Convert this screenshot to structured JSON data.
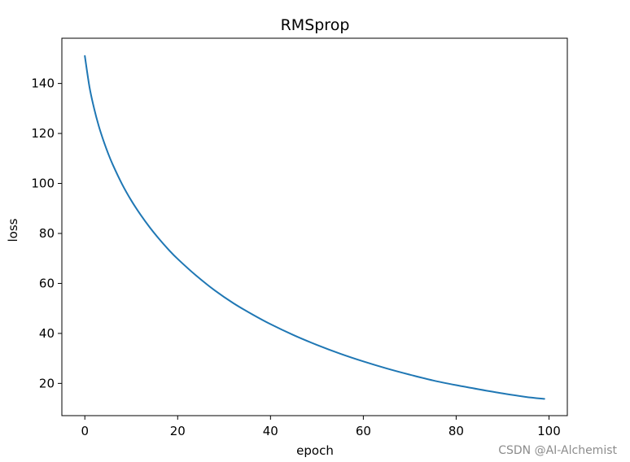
{
  "chart_data": {
    "type": "line",
    "title": "RMSprop",
    "xlabel": "epoch",
    "ylabel": "loss",
    "xlim": [
      -4.95,
      103.95
    ],
    "ylim": [
      7.1,
      158.1
    ],
    "xticks": [
      0,
      20,
      40,
      60,
      80,
      100
    ],
    "yticks": [
      20,
      40,
      60,
      80,
      100,
      120,
      140
    ],
    "grid": false,
    "legend": false,
    "series": [
      {
        "color": "#1f77b4",
        "x": [
          0,
          1,
          2,
          3,
          4,
          5,
          6,
          8,
          10,
          12,
          14,
          16,
          18,
          20,
          24,
          28,
          32,
          36,
          40,
          45,
          50,
          55,
          60,
          65,
          70,
          75,
          80,
          85,
          90,
          95,
          99
        ],
        "y": [
          151.0,
          138.6,
          130.0,
          123.0,
          117.2,
          112.1,
          107.6,
          99.8,
          93.2,
          87.5,
          82.4,
          77.8,
          73.6,
          69.8,
          63.1,
          57.2,
          52.1,
          47.7,
          43.7,
          39.3,
          35.4,
          31.9,
          28.8,
          26.0,
          23.5,
          21.2,
          19.3,
          17.6,
          16.0,
          14.6,
          13.8
        ]
      }
    ]
  },
  "watermark": "CSDN @AI-Alchemist"
}
